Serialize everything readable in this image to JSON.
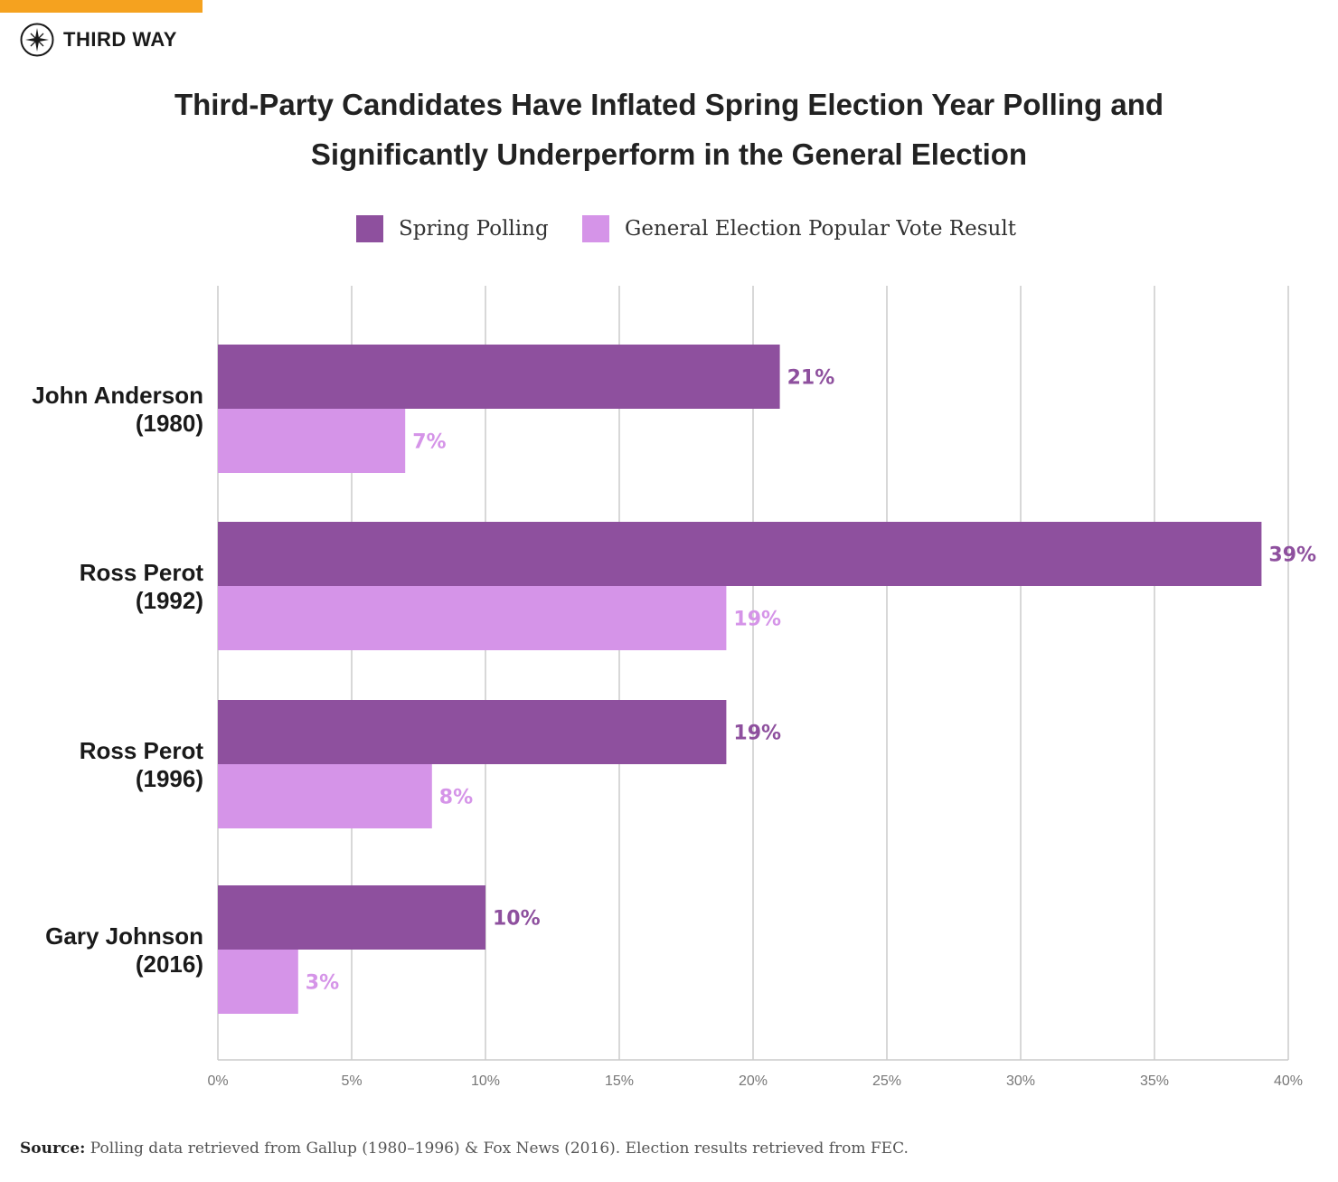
{
  "brand": {
    "name": "THIRD WAY",
    "icon": "compass-star-icon",
    "accent_color": "#f5a21f"
  },
  "chart_data": {
    "type": "bar",
    "orientation": "horizontal",
    "title": "Third-Party Candidates Have Inflated Spring Election Year Polling and Significantly Underperform in the General Election",
    "title_lines": [
      "Third-Party Candidates Have Inflated Spring Election Year Polling and",
      "Significantly Underperform in the General Election"
    ],
    "categories": [
      [
        "John Anderson",
        "(1980)"
      ],
      [
        "Ross Perot",
        "(1992)"
      ],
      [
        "Ross Perot",
        "(1996)"
      ],
      [
        "Gary Johnson",
        "(2016)"
      ]
    ],
    "series": [
      {
        "name": "Spring Polling",
        "color": "#8e509e",
        "values": [
          21,
          39,
          19,
          10
        ],
        "labels": [
          "21%",
          "39%",
          "19%",
          "10%"
        ]
      },
      {
        "name": "General Election Popular Vote Result",
        "color": "#d594e8",
        "values": [
          7,
          19,
          8,
          3
        ],
        "labels": [
          "7%",
          "19%",
          "8%",
          "3%"
        ]
      }
    ],
    "xlim": [
      0,
      40
    ],
    "xticks": [
      0,
      5,
      10,
      15,
      20,
      25,
      30,
      35,
      40
    ],
    "xtick_labels": [
      "0%",
      "5%",
      "10%",
      "15%",
      "20%",
      "25%",
      "30%",
      "35%",
      "40%"
    ],
    "xlabel": "",
    "ylabel": "",
    "grid": true,
    "legend_position": "top-center"
  },
  "source": {
    "label": "Source:",
    "text": "Polling data retrieved from Gallup (1980–1996) & Fox News (2016). Election results retrieved from FEC."
  }
}
